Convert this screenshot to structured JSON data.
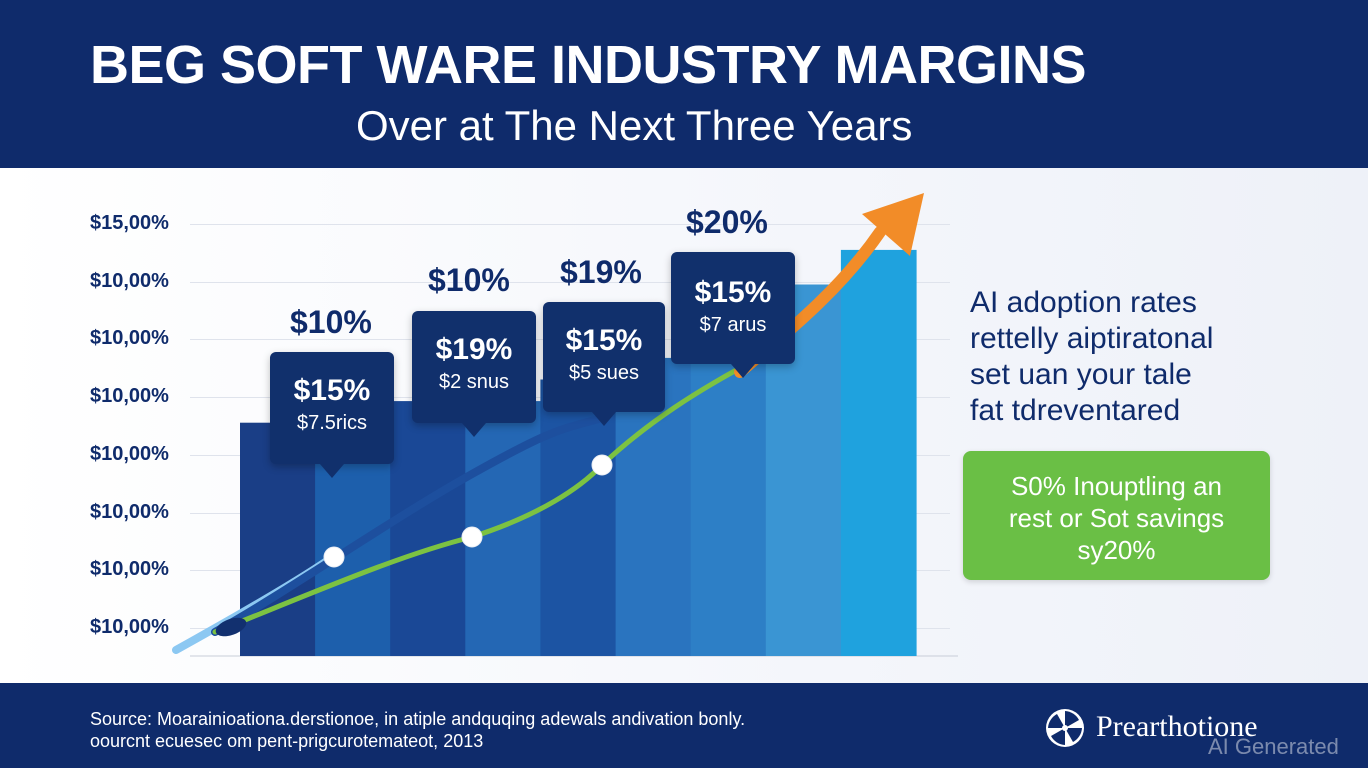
{
  "header": {
    "title": "BEG SOFT WARE INDUSTRY MARGINS",
    "subtitle": "Over at The Next Three Years"
  },
  "chart_data": {
    "type": "bar",
    "title": "BEG SOFT WARE INDUSTRY MARGINS",
    "subtitle": "Over at The Next Three Years",
    "y_tick_labels": [
      "$15,00%",
      "$10,00%",
      "$10,00%",
      "$10,00%",
      "$10,00%",
      "$10,00%",
      "$10,00%",
      "$10,00%"
    ],
    "bars": [
      {
        "shade": "#1a3e86",
        "level": 0.54
      },
      {
        "shade": "#1d5fac",
        "level": 0.54
      },
      {
        "shade": "#1a4896",
        "level": 0.59
      },
      {
        "shade": "#2467b4",
        "level": 0.59
      },
      {
        "shade": "#1c54a3",
        "level": 0.64
      },
      {
        "shade": "#2a74bf",
        "level": 0.69
      },
      {
        "shade": "#2d7fc6",
        "level": 0.76
      },
      {
        "shade": "#3a95d3",
        "level": 0.86
      },
      {
        "shade": "#1fa2de",
        "level": 0.94
      }
    ],
    "callouts": [
      {
        "value": "$15%",
        "note": "$7.5rics"
      },
      {
        "value": "$19%",
        "note": "$2 snus"
      },
      {
        "value": "$15%",
        "note": "$5 sues"
      },
      {
        "value": "$15%",
        "note": "$7 arus"
      }
    ],
    "top_labels": [
      "$10%",
      "$10%",
      "$19%",
      "$20%"
    ],
    "lines": [
      {
        "color": "#7cc242",
        "trend": "upward"
      },
      {
        "color": "#1d4f9e",
        "trend": "upward"
      },
      {
        "color": "#8cc8f2",
        "trend": "upward"
      }
    ],
    "arrow_color": "#f28c28",
    "grid": true
  },
  "side_note": {
    "lines": [
      "AI adoption rates",
      "rettelly aiptiratonal",
      "set uan your tale",
      "fat tdreventared"
    ]
  },
  "highlight_box": {
    "lines": [
      "S0% Inouptling an",
      "rest or Sot savings",
      "sy20%"
    ],
    "color": "#6abf45"
  },
  "footer": {
    "source_lines": [
      "Source: Moarainioationa.derstionoe, in atiple andquqing adewals andivation bonly.",
      "oourcnt ecuesec om pent-prigcurotemateot, 2013"
    ],
    "logo_text": "Prearthotione",
    "logo_icon": "pinwheel-icon",
    "watermark": "AI Generated"
  }
}
